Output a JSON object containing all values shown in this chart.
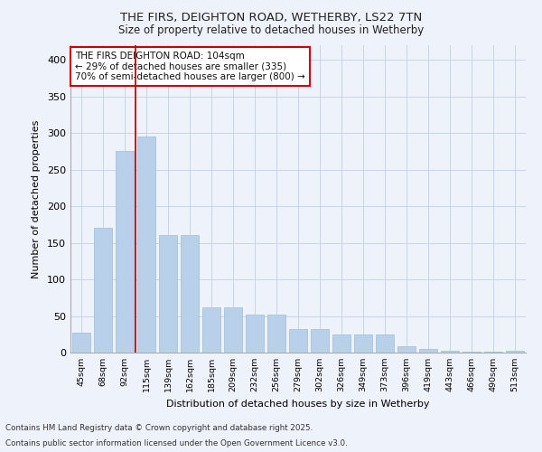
{
  "title1": "THE FIRS, DEIGHTON ROAD, WETHERBY, LS22 7TN",
  "title2": "Size of property relative to detached houses in Wetherby",
  "xlabel": "Distribution of detached houses by size in Wetherby",
  "ylabel": "Number of detached properties",
  "categories": [
    "45sqm",
    "68sqm",
    "92sqm",
    "115sqm",
    "139sqm",
    "162sqm",
    "185sqm",
    "209sqm",
    "232sqm",
    "256sqm",
    "279sqm",
    "302sqm",
    "326sqm",
    "349sqm",
    "373sqm",
    "396sqm",
    "419sqm",
    "443sqm",
    "466sqm",
    "490sqm",
    "513sqm"
  ],
  "values": [
    27,
    170,
    275,
    295,
    160,
    160,
    62,
    62,
    52,
    52,
    32,
    32,
    25,
    25,
    25,
    9,
    5,
    2,
    1,
    1,
    3
  ],
  "bar_color": "#b8d0ea",
  "bar_edge_color": "#a0bcd8",
  "red_line_x": 2.5,
  "annotation_text": "THE FIRS DEIGHTON ROAD: 104sqm\n← 29% of detached houses are smaller (335)\n70% of semi-detached houses are larger (800) →",
  "annotation_box_color": "#ffffff",
  "annotation_box_edge": "#cc0000",
  "ylim": [
    0,
    420
  ],
  "yticks": [
    0,
    50,
    100,
    150,
    200,
    250,
    300,
    350,
    400
  ],
  "background_color": "#eef2fb",
  "grid_color": "#c8d4e8",
  "footnote1": "Contains HM Land Registry data © Crown copyright and database right 2025.",
  "footnote2": "Contains public sector information licensed under the Open Government Licence v3.0."
}
